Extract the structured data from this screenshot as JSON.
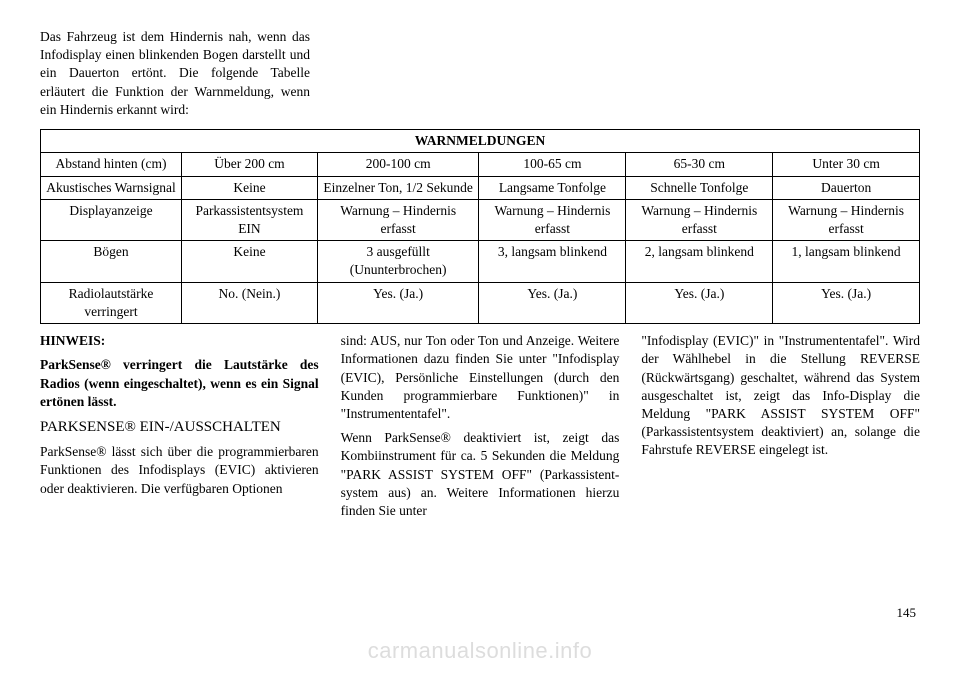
{
  "intro": "Das Fahrzeug ist dem Hindernis nah, wenn das Infodisplay einen blinken­den Bogen darstellt und ein Dauerton ertönt. Die folgende Tabelle erläutert die Funktion der Warnmeldung, wenn ein Hindernis erkannt wird:",
  "table": {
    "title": "WARNMELDUNGEN",
    "rows": [
      [
        "Abstand hinten (cm)",
        "Über 200 cm",
        "200-100 cm",
        "100-65 cm",
        "65-30 cm",
        "Unter 30 cm"
      ],
      [
        "Akustisches Warnsignal",
        "Keine",
        "Einzelner Ton, 1/2 Sekunde",
        "Langsame Ton­folge",
        "Schnelle Tonfolge",
        "Dauerton"
      ],
      [
        "Displayanzeige",
        "Parkassistentsys­tem EIN",
        "Warnung – Hindernis erfasst",
        "Warnung – Hindernis erfasst",
        "Warnung – Hindernis erfasst",
        "Warnung – Hindernis erfasst"
      ],
      [
        "Bögen",
        "Keine",
        "3 ausgefüllt (Ununterbrochen)",
        "3, langsam blinkend",
        "2, langsam blinkend",
        "1, langsam blinkend"
      ],
      [
        "Radiolautstärke verringert",
        "No. (Nein.)",
        "Yes. (Ja.)",
        "Yes. (Ja.)",
        "Yes. (Ja.)",
        "Yes. (Ja.)"
      ]
    ]
  },
  "col1": {
    "note_label": "HINWEIS:",
    "note_body": "ParkSense® verringert die Laut­stärke des Radios (wenn einge­schaltet), wenn es ein Signal ertö­nen lässt.",
    "heading": "PARKSENSE® EIN-/AUSSCHALTEN",
    "p1": "ParkSense® lässt sich über die pro­grammierbaren Funktionen des Info­displays (EVIC) aktivieren oder de­aktivieren. Die verfügbaren Optionen"
  },
  "col2": {
    "p1": "sind: AUS, nur Ton oder Ton und Anzeige. Weitere Informationen dazu finden Sie unter \"Infodisplay (EVIC), Persönliche Einstellungen (durch den Kunden programmierbare Funktio­nen)\" in \"Instrumententafel\".",
    "p2": "Wenn ParkSense® deaktiviert ist, zeigt das Kombiinstrument für ca. 5 Sekunden die Meldung \"PARK AS­SIST SYSTEM OFF\" (Parkassistent­system aus) an. Weitere Informatio­nen hierzu finden Sie unter"
  },
  "col3": {
    "p1": "\"Infodisplay (EVIC)\" in \"Instrumen­tentafel\". Wird der Wählhebel in die Stellung REVERSE (Rückwärtsgang) geschaltet, während das System aus­geschaltet ist, zeigt das Info-Display die Meldung \"PARK ASSIST SYS­TEM OFF\" (Parkassistentsystem de­aktiviert) an, solange die Fahrstufe REVERSE eingelegt ist."
  },
  "pagenum": "145",
  "watermark": "carmanualsonline.info"
}
